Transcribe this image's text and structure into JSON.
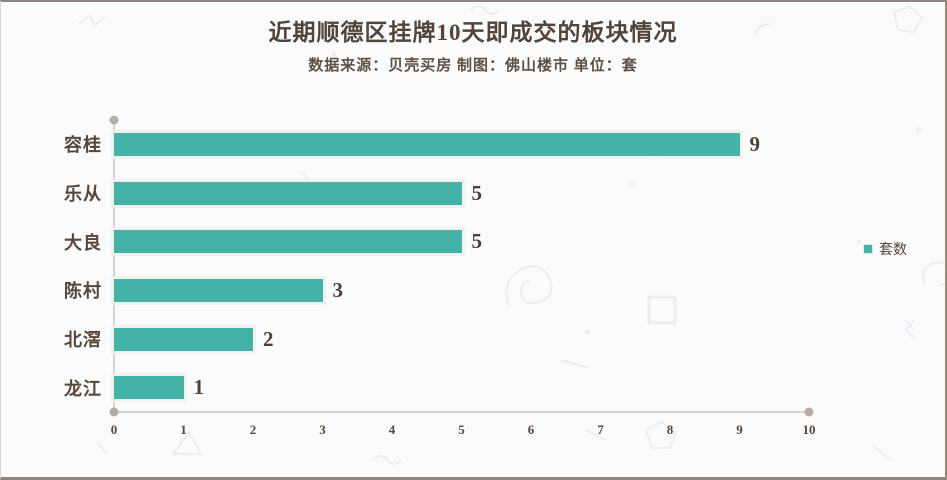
{
  "header": {
    "title": "近期顺德区挂牌10天即成交的板块情况",
    "subtitle": "数据来源：贝壳买房  制图：佛山楼市  单位：套"
  },
  "legend": {
    "label": "套数",
    "marker_color": "#43b3a8",
    "position": "right"
  },
  "chart_data": {
    "type": "bar",
    "orientation": "horizontal",
    "title": "近期顺德区挂牌10天即成交的板块情况",
    "subtitle": "数据来源：贝壳买房  制图：佛山楼市  单位：套",
    "unit": "套",
    "categories": [
      "容桂",
      "乐从",
      "大良",
      "陈村",
      "北滘",
      "龙江"
    ],
    "series": [
      {
        "name": "套数",
        "values": [
          9,
          5,
          5,
          3,
          2,
          1
        ]
      }
    ],
    "value_labels": [
      "9",
      "5",
      "5",
      "3",
      "2",
      "1"
    ],
    "xlim": [
      0,
      10
    ],
    "x_ticks": [
      "0",
      "1",
      "2",
      "3",
      "4",
      "5",
      "6",
      "7",
      "8",
      "9",
      "10"
    ],
    "grid": false,
    "legend_position": "right",
    "bar_color": "#43b3a8"
  },
  "colors": {
    "accent": "#43b3a8",
    "text": "#53443a",
    "axis_line": "#d6d4d0",
    "axis_dot": "#b5aea7",
    "background": "#fafbfd",
    "frame_border": "#8f857b"
  }
}
